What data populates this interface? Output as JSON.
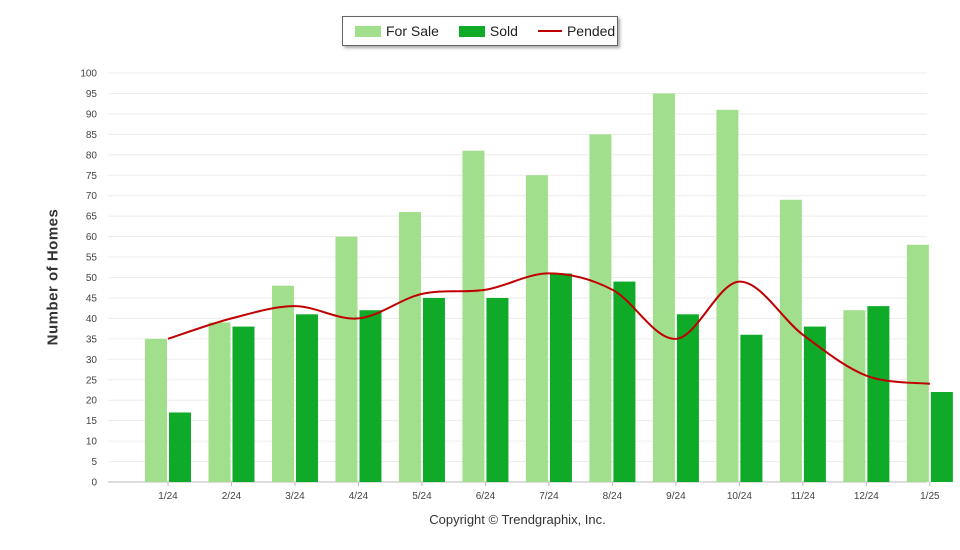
{
  "chart_data": {
    "type": "bar",
    "categories": [
      "1/24",
      "2/24",
      "3/24",
      "4/24",
      "5/24",
      "6/24",
      "7/24",
      "8/24",
      "9/24",
      "10/24",
      "11/24",
      "12/24",
      "1/25"
    ],
    "series": [
      {
        "name": "For Sale",
        "type": "bar",
        "color": "#a2df8c",
        "values": [
          35,
          39,
          48,
          60,
          66,
          81,
          75,
          85,
          95,
          91,
          69,
          42,
          58
        ]
      },
      {
        "name": "Sold",
        "type": "bar",
        "color": "#0eaa28",
        "values": [
          17,
          38,
          41,
          42,
          45,
          45,
          51,
          49,
          41,
          36,
          38,
          43,
          22
        ]
      },
      {
        "name": "Pended",
        "type": "line",
        "color": "#c00000",
        "values": [
          35,
          40,
          43,
          40,
          46,
          47,
          51,
          47,
          35,
          49,
          36,
          26,
          24
        ]
      }
    ],
    "ylabel": "Number of Homes",
    "ylim": [
      0,
      100
    ],
    "ytick_step": 5,
    "legend": "top-center",
    "grid": true
  },
  "footer": {
    "copyright": "Copyright © Trendgraphix, Inc."
  }
}
